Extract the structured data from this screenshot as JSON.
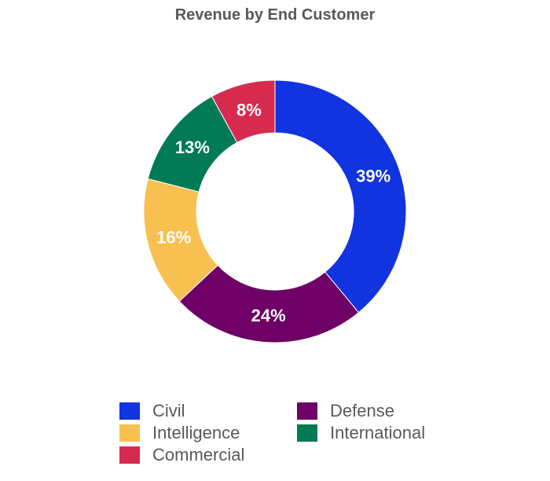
{
  "chart_data": {
    "type": "pie",
    "donut": true,
    "title": "Revenue by End Customer",
    "slices": [
      {
        "name": "Civil",
        "value": 39,
        "label": "39%",
        "color": "#1133E0"
      },
      {
        "name": "Defense",
        "value": 24,
        "label": "24%",
        "color": "#6E0066"
      },
      {
        "name": "Intelligence",
        "value": 16,
        "label": "16%",
        "color": "#F8C050"
      },
      {
        "name": "International",
        "value": 13,
        "label": "13%",
        "color": "#007A55"
      },
      {
        "name": "Commercial",
        "value": 8,
        "label": "8%",
        "color": "#D62B4F"
      }
    ],
    "legend_position": "bottom"
  }
}
